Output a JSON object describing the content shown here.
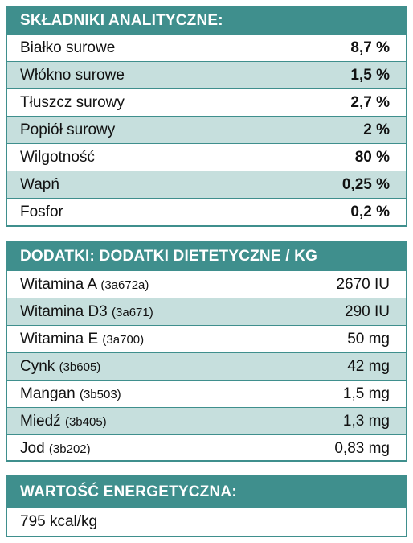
{
  "analityczne": {
    "title": "SKŁADNIKI ANALITYCZNE:",
    "rows": [
      {
        "label": "Białko surowe",
        "value": "8,7 %"
      },
      {
        "label": "Włókno surowe",
        "value": "1,5 %"
      },
      {
        "label": "Tłuszcz surowy",
        "value": "2,7 %"
      },
      {
        "label": "Popiół surowy",
        "value": "2 %"
      },
      {
        "label": "Wilgotność",
        "value": "80 %"
      },
      {
        "label": "Wapń",
        "value": "0,25 %"
      },
      {
        "label": "Fosfor",
        "value": "0,2 %"
      }
    ]
  },
  "dodatki": {
    "title": "DODATKI: DODATKI DIETETYCZNE / KG",
    "rows": [
      {
        "label": "Witamina A",
        "code": "(3a672a)",
        "value": "2670 IU"
      },
      {
        "label": "Witamina D3",
        "code": "(3a671)",
        "value": "290 IU"
      },
      {
        "label": "Witamina E",
        "code": "(3a700)",
        "value": "50 mg"
      },
      {
        "label": "Cynk",
        "code": "(3b605)",
        "value": "42 mg"
      },
      {
        "label": "Mangan",
        "code": "(3b503)",
        "value": "1,5 mg"
      },
      {
        "label": "Miedź",
        "code": "(3b405)",
        "value": "1,3 mg"
      },
      {
        "label": "Jod",
        "code": "(3b202)",
        "value": "0,83 mg"
      }
    ]
  },
  "energia": {
    "title": "WARTOŚĆ ENERGETYCZNA:",
    "value": "795 kcal/kg"
  },
  "colors": {
    "accent": "#3f8f8d",
    "alt_row": "#c6dfdd"
  }
}
